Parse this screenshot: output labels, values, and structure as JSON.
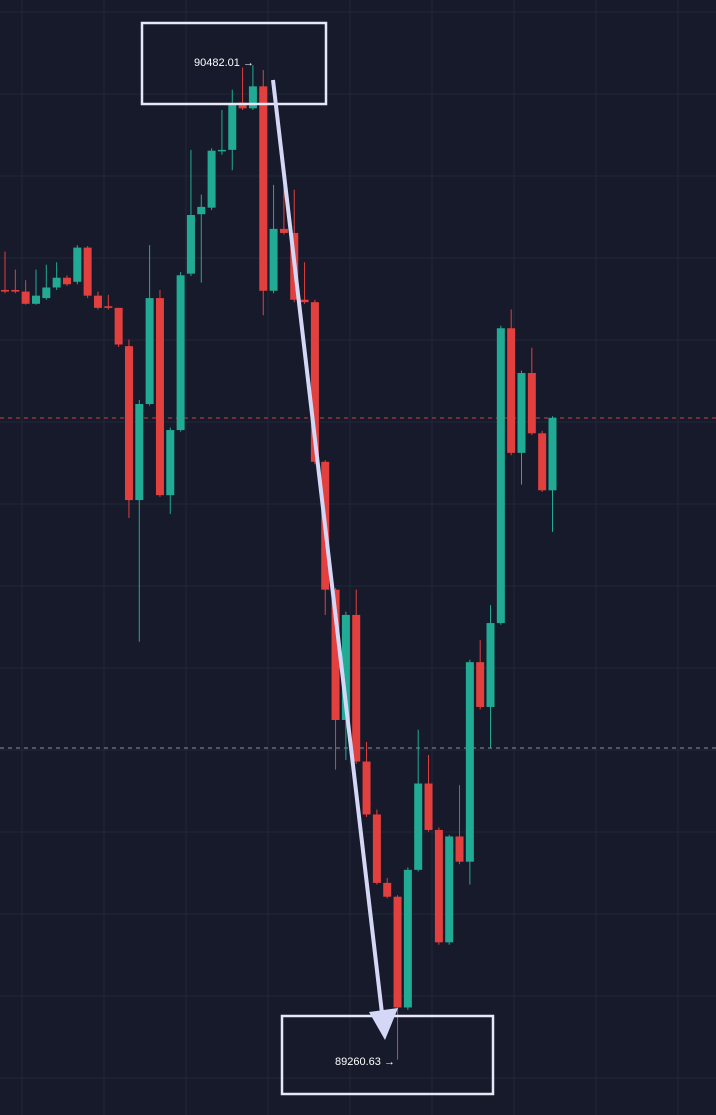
{
  "chart_data": {
    "type": "candlestick",
    "ylim": [
      89193,
      90562
    ],
    "up_color": "#22ab94",
    "down_color": "#e2403e",
    "open": [
      90206,
      90206,
      90204,
      90189,
      90196,
      90209,
      90221,
      90216,
      90258,
      90199,
      90186,
      90184,
      90137,
      89948,
      90066,
      90196,
      89954,
      90034,
      90226,
      90299,
      90307,
      90377,
      90378,
      90436,
      90429,
      90456,
      90205,
      90281,
      90276,
      90194,
      90191,
      89995,
      89838,
      89678,
      89807,
      89627,
      89562,
      89478,
      89461,
      89325,
      89494,
      89600,
      89543,
      89405,
      89535,
      89504,
      89749,
      89694,
      89797,
      90159,
      90006,
      90104,
      90030,
      89960
    ],
    "high": [
      90253,
      90231,
      90218,
      90231,
      90237,
      90240,
      90224,
      90261,
      90260,
      90204,
      90200,
      90184,
      90145,
      90071,
      90261,
      90206,
      90037,
      90228,
      90378,
      90323,
      90380,
      90427,
      90452,
      90479,
      90482,
      90476,
      90335,
      90341,
      90329,
      90240,
      90194,
      89997,
      89840,
      89811,
      89838,
      89651,
      89568,
      89484,
      89463,
      89497,
      89666,
      89635,
      89546,
      89537,
      89598,
      89752,
      89776,
      89819,
      90162,
      90182,
      90107,
      90135,
      90033,
      90051
    ],
    "low": [
      90202,
      90202,
      90188,
      90188,
      90194,
      90206,
      90211,
      90213,
      90196,
      90182,
      90182,
      90136,
      89926,
      89774,
      90064,
      89952,
      89931,
      90032,
      90223,
      90215,
      90304,
      90372,
      90353,
      90427,
      90427,
      90175,
      90202,
      90274,
      90191,
      90189,
      89992,
      89807,
      89617,
      89629,
      89624,
      89559,
      89476,
      89459,
      89261,
      89322,
      89492,
      89541,
      89402,
      89402,
      89501,
      89476,
      89691,
      89644,
      89795,
      90003,
      89967,
      90028,
      89958,
      89909
    ],
    "close": [
      90204,
      90204,
      90189,
      90199,
      90209,
      90221,
      90213,
      90258,
      90199,
      90184,
      90184,
      90139,
      89948,
      90066,
      90196,
      89954,
      90034,
      90224,
      90298,
      90308,
      90377,
      90378,
      90433,
      90429,
      90456,
      90205,
      90281,
      90276,
      90194,
      90191,
      89995,
      89838,
      89678,
      89807,
      89627,
      89562,
      89478,
      89461,
      89325,
      89494,
      89600,
      89543,
      89405,
      89535,
      89504,
      89749,
      89694,
      89797,
      90159,
      90006,
      90104,
      90030,
      89960,
      90049
    ],
    "annotations": [
      "90482.01 →",
      "89260.63 →"
    ]
  }
}
